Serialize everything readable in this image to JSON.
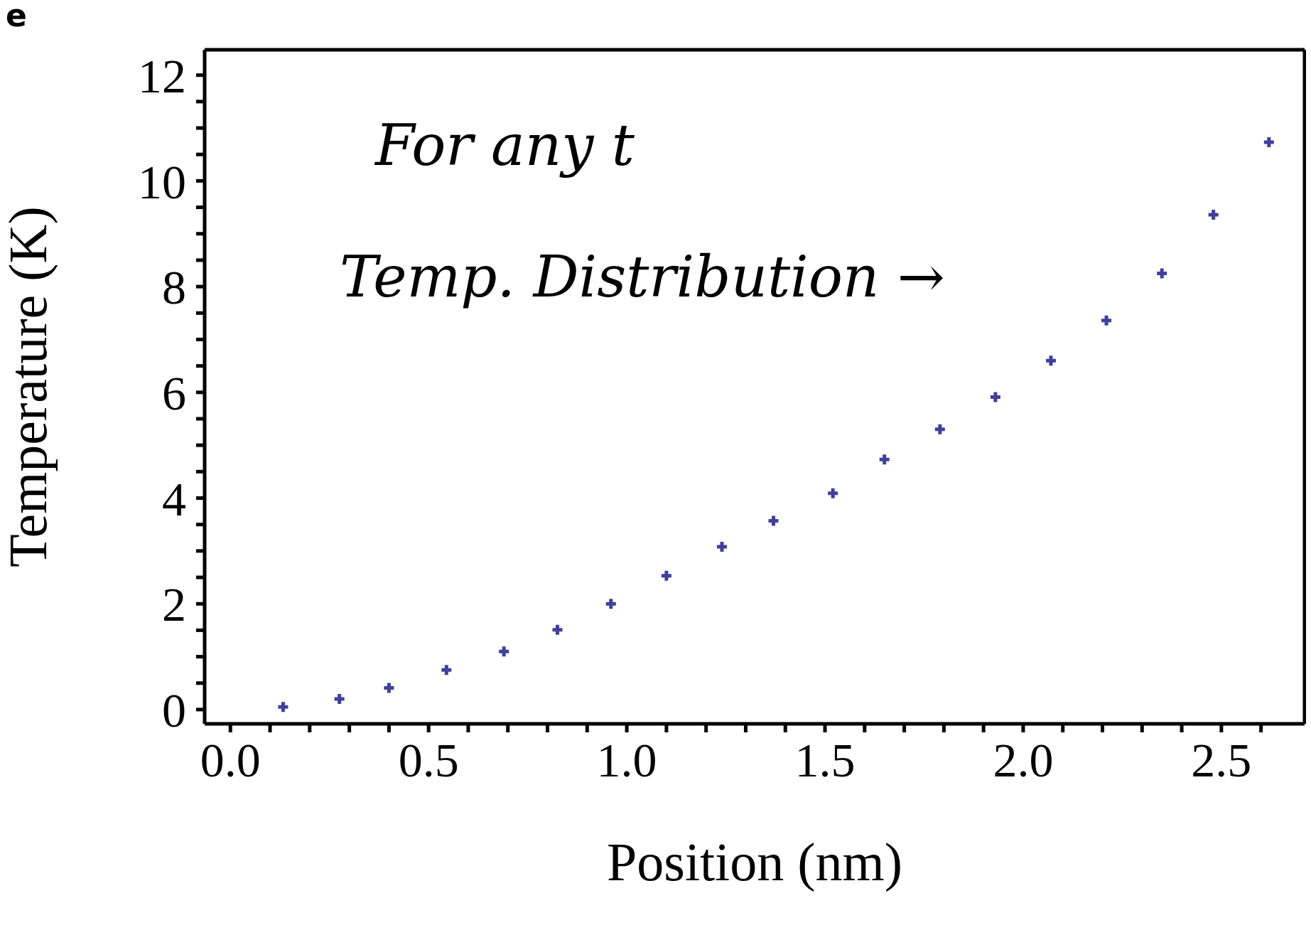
{
  "chart_data": {
    "type": "scatter",
    "title": "e",
    "xlabel": "Position (nm)",
    "ylabel": "Temperature (K)",
    "annotations": [
      "For any t",
      "Temp. Distribution →"
    ],
    "x": [
      0.133,
      0.275,
      0.4,
      0.545,
      0.69,
      0.825,
      0.96,
      1.1,
      1.24,
      1.37,
      1.52,
      1.65,
      1.79,
      1.93,
      2.07,
      2.21,
      2.35,
      2.48,
      2.62
    ],
    "series": [
      {
        "color": "#3f3f9f",
        "values": [
          0.05,
          0.2,
          0.41,
          0.75,
          1.1,
          1.51,
          2.0,
          2.53,
          3.08,
          3.57,
          4.09,
          4.73,
          5.3,
          5.91,
          6.6,
          7.36,
          8.25,
          9.36,
          10.73
        ]
      }
    ],
    "xlim": [
      -0.065,
      2.71
    ],
    "ylim": [
      -0.27,
      12.48
    ],
    "xticks": [
      {
        "value": 0,
        "label": "0.0"
      },
      {
        "value": 0.1,
        "label": null
      },
      {
        "value": 0.2,
        "label": null
      },
      {
        "value": 0.3,
        "label": null
      },
      {
        "value": 0.4,
        "label": null
      },
      {
        "value": 0.5,
        "label": "0.5"
      },
      {
        "value": 0.6,
        "label": null
      },
      {
        "value": 0.7,
        "label": null
      },
      {
        "value": 0.8,
        "label": null
      },
      {
        "value": 0.9,
        "label": null
      },
      {
        "value": 1,
        "label": "1.0"
      },
      {
        "value": 1.1,
        "label": null
      },
      {
        "value": 1.2,
        "label": null
      },
      {
        "value": 1.3,
        "label": null
      },
      {
        "value": 1.4,
        "label": null
      },
      {
        "value": 1.5,
        "label": "1.5"
      },
      {
        "value": 1.6,
        "label": null
      },
      {
        "value": 1.7,
        "label": null
      },
      {
        "value": 1.8,
        "label": null
      },
      {
        "value": 1.9,
        "label": null
      },
      {
        "value": 2,
        "label": "2.0"
      },
      {
        "value": 2.1,
        "label": null
      },
      {
        "value": 2.2,
        "label": null
      },
      {
        "value": 2.3,
        "label": null
      },
      {
        "value": 2.4,
        "label": null
      },
      {
        "value": 2.5,
        "label": "2.5"
      },
      {
        "value": 2.6,
        "label": null
      }
    ],
    "yticks": [
      0,
      {
        "value": 0.5,
        "label": null
      },
      {
        "value": 1,
        "label": null
      },
      {
        "value": 1.5,
        "label": null
      },
      2,
      {
        "value": 2.5,
        "label": null
      },
      {
        "value": 3,
        "label": null
      },
      {
        "value": 3.5,
        "label": null
      },
      4,
      {
        "value": 4.5,
        "label": null
      },
      {
        "value": 5,
        "label": null
      },
      {
        "value": 5.5,
        "label": null
      },
      6,
      {
        "value": 6.5,
        "label": null
      },
      {
        "value": 7,
        "label": null
      },
      {
        "value": 7.5,
        "label": null
      },
      8,
      {
        "value": 8.5,
        "label": null
      },
      {
        "value": 9,
        "label": null
      },
      {
        "value": 9.5,
        "label": null
      },
      10,
      {
        "value": 10.5,
        "label": null
      },
      {
        "value": 11,
        "label": null
      },
      {
        "value": 11.5,
        "label": null
      },
      12
    ],
    "marker": "cross",
    "grid": false,
    "legend": false
  }
}
